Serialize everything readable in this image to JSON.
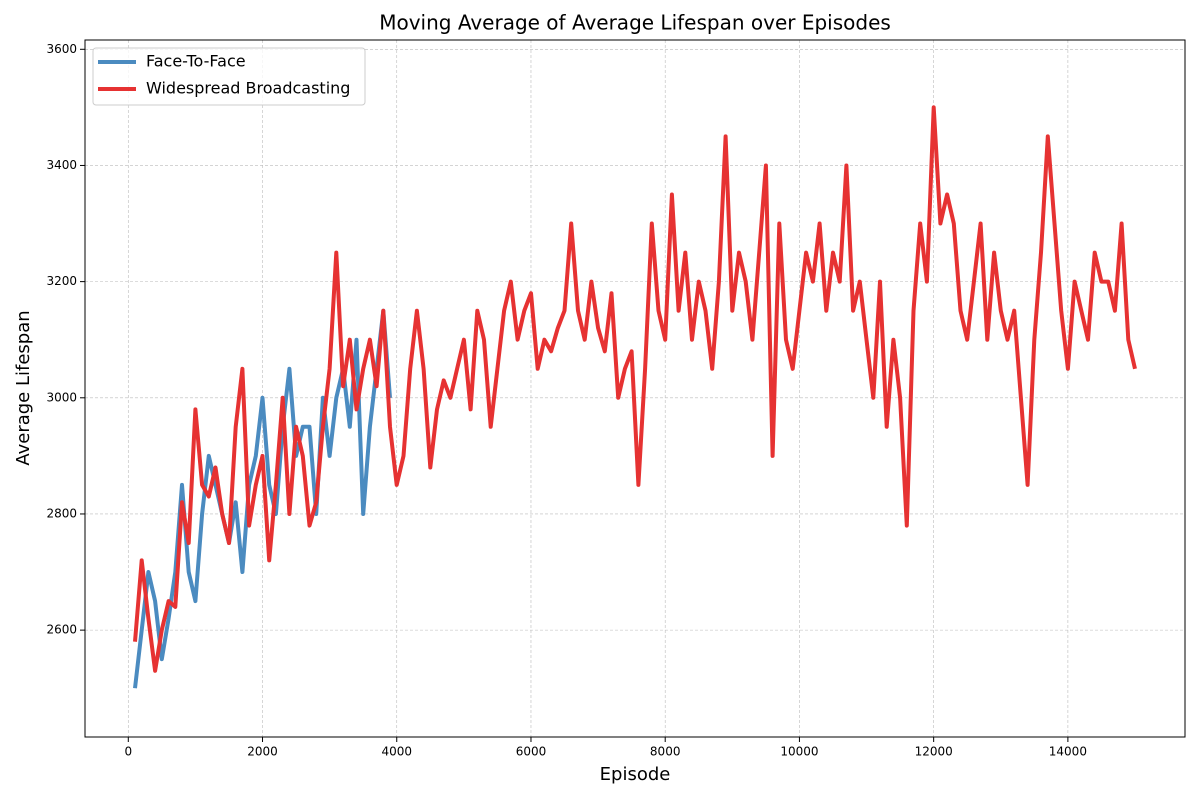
{
  "chart_data": {
    "type": "line",
    "title": "Moving Average of Average Lifespan over Episodes",
    "xlabel": "Episode",
    "ylabel": "Average Lifespan",
    "x": [
      100,
      200,
      300,
      400,
      500,
      600,
      700,
      800,
      900,
      1000,
      1100,
      1200,
      1300,
      1400,
      1500,
      1600,
      1700,
      1800,
      1900,
      2000,
      2100,
      2200,
      2300,
      2400,
      2500,
      2600,
      2700,
      2800,
      2900,
      3000,
      3100,
      3200,
      3300,
      3400,
      3500,
      3600,
      3700,
      3800,
      3900,
      4000,
      4100,
      4200,
      4300,
      4400,
      4500,
      4600,
      4700,
      4800,
      4900,
      5000,
      5100,
      5200,
      5300,
      5400,
      5500,
      5600,
      5700,
      5800,
      5900,
      6000,
      6100,
      6200,
      6300,
      6400,
      6500,
      6600,
      6700,
      6800,
      6900,
      7000,
      7100,
      7200,
      7300,
      7400,
      7500,
      7600,
      7700,
      7800,
      7900,
      8000,
      8100,
      8200,
      8300,
      8400,
      8500,
      8600,
      8700,
      8800,
      8900,
      9000,
      9100,
      9200,
      9300,
      9400,
      9500,
      9600,
      9700,
      9800,
      9900,
      10000,
      10100,
      10200,
      10300,
      10400,
      10500,
      10600,
      10700,
      10800,
      10900,
      11000,
      11100,
      11200,
      11300,
      11400,
      11500,
      11600,
      11700,
      11800,
      11900,
      12000,
      12100,
      12200,
      12300,
      12400,
      12500,
      12600,
      12700,
      12800,
      12900,
      13000,
      13100,
      13200,
      13300,
      13400,
      13500,
      13600,
      13700,
      13800,
      13900,
      14000,
      14100,
      14200,
      14300,
      14400,
      14500,
      14600,
      14700,
      14800,
      14900,
      15000
    ],
    "series": [
      {
        "name": "Face-To-Face",
        "color": "#4b8bc0",
        "values": [
          2500,
          2600,
          2700,
          2650,
          2550,
          2620,
          2700,
          2850,
          2700,
          2650,
          2800,
          2900,
          2850,
          2800,
          2750,
          2820,
          2700,
          2850,
          2900,
          3000,
          2850,
          2800,
          2950,
          3050,
          2900,
          2950,
          2950,
          2800,
          3000,
          2900,
          3000,
          3050,
          2950,
          3100,
          2800,
          2950,
          3050,
          3150,
          3000,
          null,
          null,
          null,
          null,
          null,
          null,
          null,
          null,
          null,
          null,
          null,
          null,
          null,
          null,
          null,
          null,
          null,
          null,
          null,
          null,
          null,
          null,
          null,
          null,
          null,
          null,
          null,
          null,
          null,
          null,
          null,
          null,
          null,
          null,
          null,
          null,
          null,
          null,
          null,
          null,
          null,
          null,
          null,
          null,
          null,
          null,
          null,
          null,
          null,
          null,
          null,
          null,
          null,
          null,
          null,
          null,
          null,
          null,
          null,
          null,
          null,
          null,
          null,
          null,
          null,
          null,
          null,
          null,
          null,
          null,
          null,
          null,
          null,
          null,
          null,
          null,
          null,
          null,
          null,
          null,
          null,
          null,
          null,
          null,
          null,
          null,
          null,
          null,
          null,
          null,
          null,
          null,
          null,
          null,
          null,
          null,
          null,
          null,
          null,
          null,
          null,
          null,
          null,
          null,
          null,
          null,
          null,
          null,
          null,
          null,
          null
        ]
      },
      {
        "name": "Widespread Broadcasting",
        "color": "#e63232",
        "values": [
          2580,
          2720,
          2620,
          2530,
          2600,
          2650,
          2640,
          2820,
          2750,
          2980,
          2850,
          2830,
          2880,
          2800,
          2750,
          2950,
          3050,
          2780,
          2850,
          2900,
          2720,
          2850,
          3000,
          2800,
          2950,
          2900,
          2780,
          2820,
          2950,
          3050,
          3250,
          3020,
          3100,
          2980,
          3050,
          3100,
          3020,
          3150,
          2950,
          2850,
          2900,
          3050,
          3150,
          3050,
          2880,
          2980,
          3030,
          3000,
          3050,
          3100,
          2980,
          3150,
          3100,
          2950,
          3050,
          3150,
          3200,
          3100,
          3150,
          3180,
          3050,
          3100,
          3080,
          3120,
          3150,
          3300,
          3150,
          3100,
          3200,
          3120,
          3080,
          3180,
          3000,
          3050,
          3080,
          2850,
          3050,
          3300,
          3150,
          3100,
          3350,
          3150,
          3250,
          3100,
          3200,
          3150,
          3050,
          3200,
          3450,
          3150,
          3250,
          3200,
          3100,
          3250,
          3400,
          2900,
          3300,
          3100,
          3050,
          3150,
          3250,
          3200,
          3300,
          3150,
          3250,
          3200,
          3400,
          3150,
          3200,
          3100,
          3000,
          3200,
          2950,
          3100,
          3000,
          2780,
          3150,
          3300,
          3200,
          3500,
          3300,
          3350,
          3300,
          3150,
          3100,
          3200,
          3300,
          3100,
          3250,
          3150,
          3100,
          3150,
          3000,
          2850,
          3100,
          3250,
          3450,
          3300,
          3150,
          3050,
          3200,
          3150,
          3100,
          3250,
          3200,
          3200,
          3150,
          3300,
          3100,
          3050
        ]
      }
    ],
    "xlim": [
      -645,
      15745
    ],
    "ylim": [
      2416,
      3616
    ],
    "xticks": [
      0,
      2000,
      4000,
      6000,
      8000,
      10000,
      12000,
      14000
    ],
    "yticks": [
      2600,
      2800,
      3000,
      3200,
      3400,
      3600
    ],
    "grid": true,
    "legend": "upper left"
  }
}
